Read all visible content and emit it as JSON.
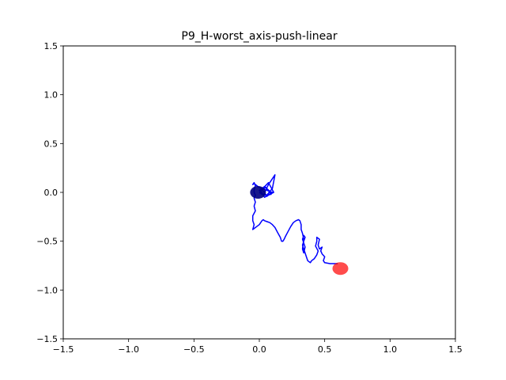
{
  "chart_data": {
    "type": "line",
    "title": "P9_H-worst_axis-push-linear",
    "xlabel": "",
    "ylabel": "",
    "xlim": [
      -1.5,
      1.5
    ],
    "ylim": [
      -1.5,
      1.5
    ],
    "xticks": [
      -1.5,
      -1.0,
      -0.5,
      0.0,
      0.5,
      1.0,
      1.5
    ],
    "xtick_labels": [
      "−1.5",
      "−1.0",
      "−0.5",
      "0.0",
      "0.5",
      "1.0",
      "1.5"
    ],
    "yticks": [
      -1.5,
      -1.0,
      -0.5,
      0.0,
      0.5,
      1.0,
      1.5
    ],
    "ytick_labels": [
      "−1.5",
      "−1.0",
      "−0.5",
      "0.0",
      "0.5",
      "1.0",
      "1.5"
    ],
    "grid": false,
    "series": [
      {
        "color": "#0000ff",
        "x": [
          0.6,
          0.54,
          0.5,
          0.49,
          0.5,
          0.48,
          0.47,
          0.48,
          0.46,
          0.45,
          0.46,
          0.44,
          0.44,
          0.43,
          0.45,
          0.44,
          0.42,
          0.4,
          0.39,
          0.37,
          0.36,
          0.35,
          0.34,
          0.33,
          0.34,
          0.35,
          0.34,
          0.33,
          0.35,
          0.34,
          0.33,
          0.34,
          0.33,
          0.32,
          0.32,
          0.31,
          0.3,
          0.28,
          0.26,
          0.24,
          0.22,
          0.2,
          0.19,
          0.18,
          0.17,
          0.16,
          0.14,
          0.12,
          0.1,
          0.08,
          0.06,
          0.04,
          0.03,
          0.02,
          0.01,
          0.0,
          -0.02,
          -0.04,
          -0.05,
          -0.04,
          -0.05,
          -0.05,
          -0.03,
          -0.04,
          -0.03,
          -0.04,
          -0.03,
          -0.04,
          -0.04,
          -0.03,
          -0.04,
          -0.05,
          -0.04,
          -0.03,
          -0.02,
          -0.01,
          0.0,
          0.02,
          0.04,
          0.06,
          0.08,
          0.1,
          0.05,
          0.1,
          0.12,
          0.07,
          0.03,
          0.0,
          0.04,
          0.09,
          0.06,
          0.02,
          0.07,
          0.11,
          0.04,
          0.01,
          0.05,
          0.09,
          0.03,
          0.0
        ],
        "y": [
          -0.73,
          -0.73,
          -0.72,
          -0.7,
          -0.66,
          -0.63,
          -0.6,
          -0.56,
          -0.58,
          -0.54,
          -0.48,
          -0.46,
          -0.5,
          -0.55,
          -0.6,
          -0.64,
          -0.68,
          -0.7,
          -0.72,
          -0.7,
          -0.66,
          -0.62,
          -0.58,
          -0.54,
          -0.5,
          -0.46,
          -0.44,
          -0.48,
          -0.56,
          -0.62,
          -0.58,
          -0.48,
          -0.42,
          -0.38,
          -0.33,
          -0.29,
          -0.28,
          -0.29,
          -0.31,
          -0.35,
          -0.4,
          -0.45,
          -0.48,
          -0.5,
          -0.5,
          -0.46,
          -0.41,
          -0.36,
          -0.33,
          -0.31,
          -0.3,
          -0.29,
          -0.28,
          -0.29,
          -0.31,
          -0.33,
          -0.35,
          -0.37,
          -0.38,
          -0.33,
          -0.29,
          -0.24,
          -0.19,
          -0.14,
          -0.1,
          -0.06,
          -0.03,
          0.0,
          0.03,
          0.07,
          0.1,
          0.08,
          0.09,
          0.08,
          0.07,
          0.06,
          0.05,
          0.04,
          0.03,
          0.02,
          0.01,
          0.0,
          -0.04,
          0.04,
          0.18,
          0.08,
          -0.03,
          0.02,
          0.06,
          0.0,
          -0.04,
          0.03,
          0.1,
          0.0,
          -0.05,
          0.02,
          0.05,
          -0.02,
          -0.03,
          0.0
        ]
      }
    ],
    "markers": [
      {
        "name": "start",
        "x": 0.62,
        "y": -0.78,
        "color": "#ff0000",
        "opacity": 0.7
      },
      {
        "name": "end",
        "x": -0.01,
        "y": 0.0,
        "color": "#000080",
        "opacity": 0.9
      }
    ]
  }
}
